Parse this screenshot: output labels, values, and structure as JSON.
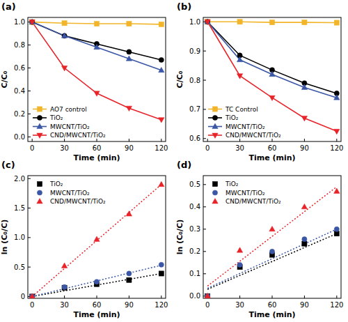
{
  "chart_data": [
    {
      "type": "line",
      "title": "(a)",
      "x_label": "Time (min)",
      "y_label": "C/C₀",
      "x": [
        0,
        30,
        60,
        90,
        120
      ],
      "xlim": [
        -4,
        124
      ],
      "xticks": [
        0,
        30,
        60,
        90,
        120
      ],
      "ylim": [
        -0.04,
        1.04
      ],
      "yticks": [
        {
          "value": 0,
          "label": "0.0"
        },
        0.2,
        0.4,
        0.6,
        0.8,
        {
          "value": 1,
          "label": "1.0"
        }
      ],
      "legend": "lower left",
      "series": [
        {
          "name": "AO7 control",
          "color": "#f2b52a",
          "marker": "square",
          "line_style": "solid",
          "values": [
            1.0,
            0.99,
            0.985,
            0.985,
            0.98
          ]
        },
        {
          "name": "TiO₂",
          "color": "#000000",
          "marker": "circle",
          "line_style": "solid",
          "values": [
            1.0,
            0.88,
            0.81,
            0.74,
            0.67
          ]
        },
        {
          "name": "MWCNT/TiO₂",
          "color": "#3a56a5",
          "marker": "triangle-up",
          "line_style": "solid",
          "values": [
            1.0,
            0.88,
            0.78,
            0.68,
            0.58
          ]
        },
        {
          "name": "CND/MWCNT/TiO₂",
          "color": "#e8242a",
          "marker": "triangle-down",
          "line_style": "solid",
          "values": [
            1.0,
            0.6,
            0.38,
            0.25,
            0.15
          ]
        }
      ]
    },
    {
      "type": "line",
      "title": "(b)",
      "x_label": "Time (min)",
      "y_label": "C/C₀",
      "x": [
        0,
        30,
        60,
        90,
        120
      ],
      "xlim": [
        -4,
        124
      ],
      "xticks": [
        0,
        30,
        60,
        90,
        120
      ],
      "ylim": [
        0.59,
        1.015
      ],
      "yticks": [
        0.6,
        0.7,
        0.8,
        0.9,
        {
          "value": 1,
          "label": "1.0"
        }
      ],
      "legend": "lower left",
      "series": [
        {
          "name": "TC Control",
          "color": "#f2b52a",
          "marker": "square",
          "line_style": "solid",
          "values": [
            1.0,
            1.0,
            0.998,
            0.998,
            0.997
          ]
        },
        {
          "name": "TiO₂",
          "color": "#000000",
          "marker": "circle",
          "line_style": "solid",
          "values": [
            1.0,
            0.885,
            0.835,
            0.79,
            0.755
          ]
        },
        {
          "name": "MWCNT/TiO₂",
          "color": "#3a56a5",
          "marker": "triangle-up",
          "line_style": "solid",
          "values": [
            1.0,
            0.87,
            0.82,
            0.775,
            0.74
          ]
        },
        {
          "name": "CND/MWCNT/TiO₂",
          "color": "#e8242a",
          "marker": "triangle-down",
          "line_style": "solid",
          "values": [
            1.0,
            0.815,
            0.74,
            0.67,
            0.625
          ]
        }
      ]
    },
    {
      "type": "scatter",
      "title": "(c)",
      "x_label": "Time (min)",
      "y_label": "ln (C₀/C)",
      "x": [
        0,
        30,
        60,
        90,
        120
      ],
      "fit_x": [
        0,
        120
      ],
      "xlim": [
        -4,
        124
      ],
      "xticks": [
        0,
        30,
        60,
        90,
        120
      ],
      "ylim": [
        -0.03,
        2.05
      ],
      "yticks": [
        0,
        0.5,
        {
          "value": 1,
          "label": "1.0"
        },
        1.5,
        {
          "value": 2,
          "label": "2.0"
        }
      ],
      "legend": "upper left",
      "series": [
        {
          "name": "TiO₂",
          "color": "#000000",
          "marker": "square",
          "line_style": "dotted",
          "values": [
            0,
            0.15,
            0.21,
            0.28,
            0.39
          ],
          "fit": [
            0,
            0.39
          ]
        },
        {
          "name": "MWCNT/TiO₂",
          "color": "#3a56a5",
          "marker": "circle",
          "line_style": "dotted",
          "values": [
            0,
            0.16,
            0.25,
            0.39,
            0.54
          ],
          "fit": [
            0,
            0.53
          ]
        },
        {
          "name": "CND/MWCNT/TiO₂",
          "color": "#e8242a",
          "marker": "triangle-up",
          "line_style": "dotted",
          "values": [
            0,
            0.52,
            0.97,
            1.4,
            1.9
          ],
          "fit": [
            0,
            1.9
          ]
        }
      ]
    },
    {
      "type": "scatter",
      "title": "(d)",
      "x_label": "Time (min)",
      "y_label": "ln (C₀/C)",
      "x": [
        0,
        30,
        60,
        90,
        120
      ],
      "fit_x": [
        0,
        120
      ],
      "xlim": [
        -4,
        124
      ],
      "xticks": [
        0,
        30,
        60,
        90,
        120
      ],
      "ylim": [
        -0.01,
        0.54
      ],
      "yticks": [
        {
          "value": 0,
          "label": "0.0"
        },
        0.1,
        0.2,
        0.3,
        0.4,
        0.5
      ],
      "legend": "upper left",
      "series": [
        {
          "name": "TiO₂",
          "color": "#000000",
          "marker": "square",
          "line_style": "dotted",
          "values": [
            0,
            0.13,
            0.185,
            0.235,
            0.28
          ],
          "fit": [
            0.03,
            0.28
          ]
        },
        {
          "name": "MWCNT/TiO₂",
          "color": "#3a56a5",
          "marker": "circle",
          "line_style": "dotted",
          "values": [
            0,
            0.14,
            0.2,
            0.255,
            0.3
          ],
          "fit": [
            0.035,
            0.3
          ]
        },
        {
          "name": "CND/MWCNT/TiO₂",
          "color": "#e8242a",
          "marker": "triangle-up",
          "line_style": "dotted",
          "values": [
            0,
            0.205,
            0.3,
            0.4,
            0.47
          ],
          "fit": [
            0.045,
            0.49
          ]
        }
      ]
    }
  ]
}
